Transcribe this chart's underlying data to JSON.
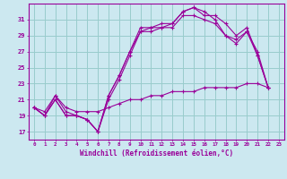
{
  "xlabel": "Windchill (Refroidissement éolien,°C)",
  "background_color": "#cce8f0",
  "line_color": "#990099",
  "grid_color": "#99cccc",
  "xticks": [
    0,
    1,
    2,
    3,
    4,
    5,
    6,
    7,
    8,
    9,
    10,
    11,
    12,
    13,
    14,
    15,
    16,
    17,
    18,
    19,
    20,
    21,
    22,
    23
  ],
  "yticks": [
    17,
    19,
    21,
    23,
    25,
    27,
    29,
    31
  ],
  "xlim": [
    -0.5,
    23.5
  ],
  "ylim": [
    16.0,
    33.0
  ],
  "series": [
    [
      20.0,
      19.0,
      21.0,
      19.0,
      19.0,
      18.5,
      17.0,
      21.0,
      23.5,
      26.5,
      29.5,
      29.5,
      30.0,
      30.0,
      31.5,
      31.5,
      31.0,
      30.5,
      29.0,
      28.5,
      29.5,
      27.0,
      22.5
    ],
    [
      20.0,
      19.0,
      21.0,
      19.0,
      19.0,
      18.5,
      17.0,
      21.5,
      24.0,
      27.0,
      29.5,
      30.0,
      30.0,
      30.5,
      32.0,
      32.5,
      31.5,
      31.5,
      30.5,
      29.0,
      30.0,
      26.5,
      22.5
    ],
    [
      20.0,
      19.0,
      21.5,
      19.5,
      19.0,
      18.5,
      17.0,
      21.5,
      24.0,
      27.0,
      30.0,
      30.0,
      30.5,
      30.5,
      32.0,
      32.5,
      32.0,
      31.0,
      29.0,
      28.0,
      29.5,
      26.5,
      22.5
    ],
    [
      20.0,
      19.5,
      21.5,
      20.0,
      19.5,
      19.5,
      19.5,
      20.0,
      20.5,
      21.0,
      21.0,
      21.5,
      21.5,
      22.0,
      22.0,
      22.0,
      22.5,
      22.5,
      22.5,
      22.5,
      23.0,
      23.0,
      22.5
    ]
  ],
  "x_indices": [
    0,
    1,
    2,
    3,
    4,
    5,
    6,
    7,
    8,
    9,
    10,
    11,
    12,
    13,
    14,
    15,
    16,
    17,
    18,
    19,
    20,
    21,
    22
  ]
}
